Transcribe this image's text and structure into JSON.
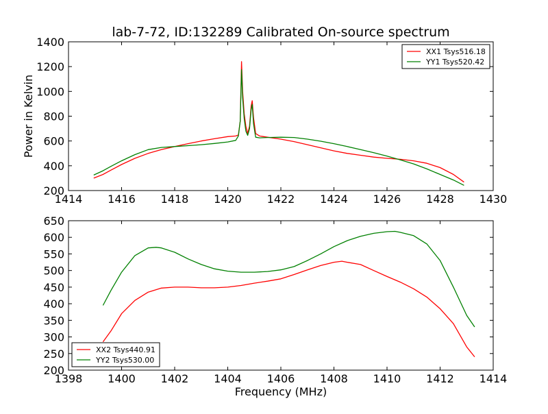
{
  "title": "lab-7-72, ID:132289 Calibrated On-source spectrum",
  "chart_data": [
    {
      "type": "line",
      "ylabel": "Power in Kelvin",
      "xlabel": "",
      "xlim": [
        1414,
        1430
      ],
      "ylim": [
        200,
        1400
      ],
      "xticks": [
        "1414",
        "1416",
        "1418",
        "1420",
        "1422",
        "1424",
        "1426",
        "1428",
        "1430"
      ],
      "yticks": [
        "200",
        "400",
        "600",
        "800",
        "1000",
        "1200",
        "1400"
      ],
      "legend_position": "top-right",
      "series": [
        {
          "name": "XX1 Tsys516.18",
          "color": "#ff0000",
          "points": [
            [
              1414.95,
              300
            ],
            [
              1415.3,
              330
            ],
            [
              1415.6,
              365
            ],
            [
              1416.0,
              410
            ],
            [
              1416.5,
              460
            ],
            [
              1417.0,
              500
            ],
            [
              1417.5,
              530
            ],
            [
              1418.0,
              555
            ],
            [
              1418.5,
              578
            ],
            [
              1419.0,
              600
            ],
            [
              1419.5,
              618
            ],
            [
              1420.0,
              635
            ],
            [
              1420.3,
              640
            ],
            [
              1420.4,
              648
            ],
            [
              1420.47,
              760
            ],
            [
              1420.52,
              1240
            ],
            [
              1420.56,
              1000
            ],
            [
              1420.62,
              820
            ],
            [
              1420.68,
              720
            ],
            [
              1420.75,
              660
            ],
            [
              1420.82,
              720
            ],
            [
              1420.88,
              880
            ],
            [
              1420.92,
              925
            ],
            [
              1420.97,
              790
            ],
            [
              1421.05,
              660
            ],
            [
              1421.2,
              640
            ],
            [
              1421.5,
              630
            ],
            [
              1422.0,
              615
            ],
            [
              1422.5,
              595
            ],
            [
              1423.0,
              570
            ],
            [
              1423.5,
              545
            ],
            [
              1424.0,
              520
            ],
            [
              1424.5,
              500
            ],
            [
              1425.0,
              485
            ],
            [
              1425.5,
              470
            ],
            [
              1426.0,
              460
            ],
            [
              1426.5,
              452
            ],
            [
              1427.0,
              440
            ],
            [
              1427.5,
              420
            ],
            [
              1428.0,
              385
            ],
            [
              1428.5,
              330
            ],
            [
              1428.9,
              268
            ]
          ]
        },
        {
          "name": "YY1 Tsys520.42",
          "color": "#008000",
          "points": [
            [
              1414.95,
              325
            ],
            [
              1415.3,
              360
            ],
            [
              1415.6,
              395
            ],
            [
              1416.0,
              440
            ],
            [
              1416.5,
              490
            ],
            [
              1417.0,
              530
            ],
            [
              1417.5,
              548
            ],
            [
              1418.0,
              555
            ],
            [
              1418.5,
              562
            ],
            [
              1419.0,
              570
            ],
            [
              1419.5,
              580
            ],
            [
              1420.0,
              592
            ],
            [
              1420.3,
              605
            ],
            [
              1420.4,
              640
            ],
            [
              1420.47,
              760
            ],
            [
              1420.52,
              1175
            ],
            [
              1420.56,
              950
            ],
            [
              1420.62,
              780
            ],
            [
              1420.68,
              680
            ],
            [
              1420.75,
              645
            ],
            [
              1420.82,
              700
            ],
            [
              1420.88,
              850
            ],
            [
              1420.92,
              895
            ],
            [
              1420.97,
              740
            ],
            [
              1421.05,
              630
            ],
            [
              1421.2,
              625
            ],
            [
              1421.5,
              628
            ],
            [
              1422.0,
              630
            ],
            [
              1422.5,
              628
            ],
            [
              1423.0,
              615
            ],
            [
              1423.5,
              598
            ],
            [
              1424.0,
              578
            ],
            [
              1424.5,
              555
            ],
            [
              1425.0,
              530
            ],
            [
              1425.5,
              505
            ],
            [
              1426.0,
              478
            ],
            [
              1426.5,
              448
            ],
            [
              1427.0,
              415
            ],
            [
              1427.5,
              375
            ],
            [
              1428.0,
              330
            ],
            [
              1428.5,
              285
            ],
            [
              1428.9,
              242
            ]
          ]
        }
      ]
    },
    {
      "type": "line",
      "ylabel": "",
      "xlabel": "Frequency (MHz)",
      "xlim": [
        1398,
        1414
      ],
      "ylim": [
        200,
        650
      ],
      "xticks": [
        "1398",
        "1400",
        "1402",
        "1404",
        "1406",
        "1408",
        "1410",
        "1412",
        "1414"
      ],
      "yticks": [
        "200",
        "250",
        "300",
        "350",
        "400",
        "450",
        "500",
        "550",
        "600",
        "650"
      ],
      "legend_position": "bottom-left",
      "series": [
        {
          "name": "XX2 Tsys440.91",
          "color": "#ff0000",
          "points": [
            [
              1399.3,
              285
            ],
            [
              1399.6,
              318
            ],
            [
              1400.0,
              370
            ],
            [
              1400.5,
              410
            ],
            [
              1401.0,
              435
            ],
            [
              1401.5,
              447
            ],
            [
              1402.0,
              450
            ],
            [
              1402.5,
              450
            ],
            [
              1403.0,
              448
            ],
            [
              1403.5,
              448
            ],
            [
              1404.0,
              450
            ],
            [
              1404.5,
              455
            ],
            [
              1405.0,
              462
            ],
            [
              1405.5,
              468
            ],
            [
              1406.0,
              475
            ],
            [
              1406.5,
              488
            ],
            [
              1407.0,
              502
            ],
            [
              1407.5,
              515
            ],
            [
              1408.0,
              525
            ],
            [
              1408.3,
              528
            ],
            [
              1408.5,
              525
            ],
            [
              1409.0,
              518
            ],
            [
              1409.5,
              500
            ],
            [
              1410.0,
              482
            ],
            [
              1410.5,
              465
            ],
            [
              1411.0,
              445
            ],
            [
              1411.5,
              420
            ],
            [
              1412.0,
              385
            ],
            [
              1412.5,
              340
            ],
            [
              1413.0,
              270
            ],
            [
              1413.3,
              240
            ]
          ]
        },
        {
          "name": "YY2 Tsys530.00",
          "color": "#008000",
          "points": [
            [
              1399.3,
              395
            ],
            [
              1399.6,
              440
            ],
            [
              1400.0,
              495
            ],
            [
              1400.5,
              545
            ],
            [
              1401.0,
              568
            ],
            [
              1401.3,
              570
            ],
            [
              1401.5,
              568
            ],
            [
              1402.0,
              555
            ],
            [
              1402.5,
              535
            ],
            [
              1403.0,
              518
            ],
            [
              1403.5,
              505
            ],
            [
              1404.0,
              498
            ],
            [
              1404.5,
              495
            ],
            [
              1405.0,
              495
            ],
            [
              1405.5,
              497
            ],
            [
              1406.0,
              502
            ],
            [
              1406.5,
              512
            ],
            [
              1407.0,
              530
            ],
            [
              1407.5,
              550
            ],
            [
              1408.0,
              572
            ],
            [
              1408.5,
              590
            ],
            [
              1409.0,
              603
            ],
            [
              1409.5,
              612
            ],
            [
              1410.0,
              617
            ],
            [
              1410.3,
              618
            ],
            [
              1410.5,
              615
            ],
            [
              1411.0,
              605
            ],
            [
              1411.5,
              580
            ],
            [
              1412.0,
              530
            ],
            [
              1412.5,
              450
            ],
            [
              1413.0,
              365
            ],
            [
              1413.3,
              330
            ]
          ]
        }
      ]
    }
  ]
}
